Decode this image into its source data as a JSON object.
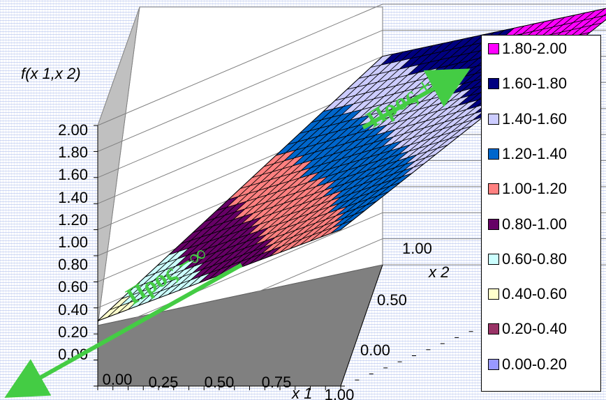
{
  "chart_data": {
    "type": "surface",
    "z_label": "f(x 1,x 2)",
    "x1_label": "x 1",
    "x2_label": "x 2",
    "z_ticks": [
      "2.00",
      "1.80",
      "1.60",
      "1.40",
      "1.20",
      "1.00",
      "0.80",
      "0.60",
      "0.40",
      "0.20",
      "0.00"
    ],
    "x1_ticks": [
      "0.00",
      "0.25",
      "0.50",
      "0.75",
      "1.00"
    ],
    "x2_ticks": [
      "1.00",
      "0.50",
      "0.00"
    ],
    "zlim": [
      0,
      2
    ],
    "x1_range": [
      0,
      1
    ],
    "x2_range": [
      0,
      1
    ],
    "surface": {
      "z_at_x1_0_x2_0": 0.5,
      "z_at_x1_1_x2_0": 1.2,
      "z_at_x1_0_x2_1": 1.6,
      "z_at_x1_1_x2_1": 2.0
    },
    "legend": [
      {
        "label": "1.80-2.00",
        "color": "#ff00ff"
      },
      {
        "label": "1.60-1.80",
        "color": "#000080"
      },
      {
        "label": "1.40-1.60",
        "color": "#ccccff"
      },
      {
        "label": "1.20-1.40",
        "color": "#0066cc"
      },
      {
        "label": "1.00-1.20",
        "color": "#ff8080"
      },
      {
        "label": "0.80-1.00",
        "color": "#660066"
      },
      {
        "label": "0.60-0.80",
        "color": "#ccffff"
      },
      {
        "label": "0.40-0.60",
        "color": "#ffffcc"
      },
      {
        "label": "0.20-0.40",
        "color": "#993366"
      },
      {
        "label": "0.00-0.20",
        "color": "#9999ff"
      }
    ]
  },
  "annotations": {
    "toward_plus_infinity": "Προς +∞",
    "toward_minus_infinity": "Προς −∞"
  },
  "colors": {
    "arrow": "#44cc44",
    "floor": "#808080",
    "walls": "#ffffff"
  }
}
